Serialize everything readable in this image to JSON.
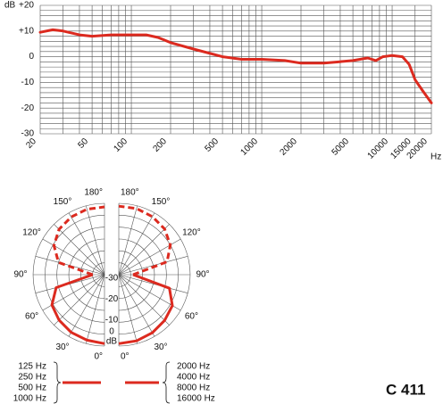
{
  "chart_data": [
    {
      "type": "line",
      "y_label": "dB",
      "x_unit": "Hz",
      "xscale": "log",
      "x": [
        20,
        25,
        30,
        40,
        50,
        70,
        100,
        130,
        160,
        200,
        300,
        500,
        700,
        1000,
        1500,
        2000,
        3000,
        5000,
        6500,
        7500,
        8500,
        10000,
        12000,
        13500,
        15000,
        17000,
        20000
      ],
      "series": [
        {
          "color": "#dc2a1f",
          "values": [
            9.5,
            10.5,
            10,
            8.5,
            8,
            8.5,
            8.5,
            8.5,
            7.5,
            5.5,
            3,
            0,
            -1,
            -1,
            -1.5,
            -2.5,
            -2.5,
            -1.5,
            -0.5,
            -1.5,
            0,
            0.5,
            0,
            -3,
            -9,
            -13,
            -18
          ]
        }
      ],
      "xlim": [
        20,
        20000
      ],
      "ylim": [
        -30,
        20
      ],
      "xticks": [
        20,
        50,
        100,
        200,
        500,
        1000,
        2000,
        5000,
        10000,
        15000,
        20000
      ],
      "yticks": [
        {
          "value": 20,
          "label": "+20"
        },
        {
          "value": 10,
          "label": "+10"
        },
        0,
        -10,
        -20,
        -30
      ],
      "xgrid": [
        20,
        30,
        40,
        50,
        60,
        70,
        80,
        90,
        100,
        200,
        300,
        400,
        500,
        600,
        700,
        800,
        900,
        1000,
        2000,
        3000,
        4000,
        5000,
        6000,
        7000,
        8000,
        9000,
        10000,
        15000,
        20000
      ],
      "ygrid": [
        -30,
        -28,
        -26,
        -24,
        -22,
        -20,
        -18,
        -16,
        -14,
        -12,
        -10,
        -8,
        -6,
        -4,
        -2,
        0,
        2,
        4,
        6,
        8,
        10,
        12,
        14,
        16,
        18,
        20
      ]
    },
    {
      "type": "polar",
      "r_label": "dB",
      "rlim": [
        -30,
        0
      ],
      "rticks": [
        -30,
        -20,
        -10,
        0
      ],
      "angles": [
        {
          "value": 0,
          "label": "0°"
        },
        {
          "value": 30,
          "label": "30°"
        },
        {
          "value": 60,
          "label": "60°"
        },
        {
          "value": 90,
          "label": "90°"
        },
        {
          "value": 120,
          "label": "120°"
        },
        {
          "value": 150,
          "label": "150°"
        },
        {
          "value": 180,
          "label": "180°"
        }
      ],
      "theta": [
        0,
        15,
        30,
        45,
        60,
        75,
        90,
        105,
        120,
        135,
        150,
        165,
        180
      ],
      "series": [
        {
          "side": "left",
          "color": "#dc2a1f",
          "frequencies": [
            "125 Hz",
            "250 Hz",
            "500 Hz",
            "1000 Hz"
          ],
          "values": [
            -1,
            -1.5,
            -2,
            -3,
            -4.5,
            -9,
            -25,
            -10,
            -5.5,
            -3,
            -2,
            -1.5,
            -1.5
          ]
        },
        {
          "side": "right",
          "color": "#dc2a1f",
          "frequencies": [
            "2000 Hz",
            "4000 Hz",
            "8000 Hz",
            "16000 Hz"
          ],
          "values": [
            -1,
            -1.2,
            -1.8,
            -2.8,
            -4,
            -8,
            -24,
            -9,
            -5,
            -2.8,
            -1.8,
            -1.2,
            -1.2
          ]
        }
      ]
    }
  ],
  "model": "C 411"
}
